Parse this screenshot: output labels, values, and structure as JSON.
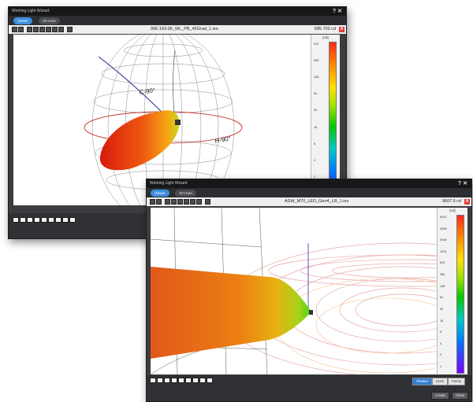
{
  "window1": {
    "title": "Working Light Wizard",
    "controls": "? ✕",
    "tabs": [
      {
        "label": "Viewer"
      },
      {
        "label": "3D-Data"
      }
    ],
    "file_name": "996.193-06_WL_PB_45Grad_1.ies",
    "max_cd": "685.703 cd",
    "unit_button": "A",
    "scale_unit": "[cd]",
    "scale_ticks": [
      "512",
      "256",
      "128",
      "64",
      "32",
      "16",
      "8",
      "4",
      "2",
      "1"
    ],
    "angle_labels": [
      "C-90°",
      "H-90°"
    ]
  },
  "window2": {
    "title": "Working Light Wizard",
    "controls": "? ✕",
    "tabs": [
      {
        "label": "Viewer"
      },
      {
        "label": "3D-Data"
      }
    ],
    "file_name": "ASW_M70_LED_Gen4_LR_1.ies",
    "max_cd": "9607.9 cd",
    "unit_button": "A",
    "scale_unit": "[cd]",
    "scale_ticks": [
      "8192",
      "4096",
      "2048",
      "1024",
      "512",
      "256",
      "128",
      "64",
      "32",
      "16",
      "8",
      "4",
      "2",
      "1"
    ],
    "render_modes": [
      "Shaded",
      "Lines",
      "Points"
    ],
    "selected_mode": "Shaded",
    "footer_buttons": [
      "Create",
      "Close"
    ]
  },
  "colors": {
    "accent": "#3d8fe0",
    "window_bg": "#3b3d40",
    "unit_button": "#e23a3a"
  }
}
